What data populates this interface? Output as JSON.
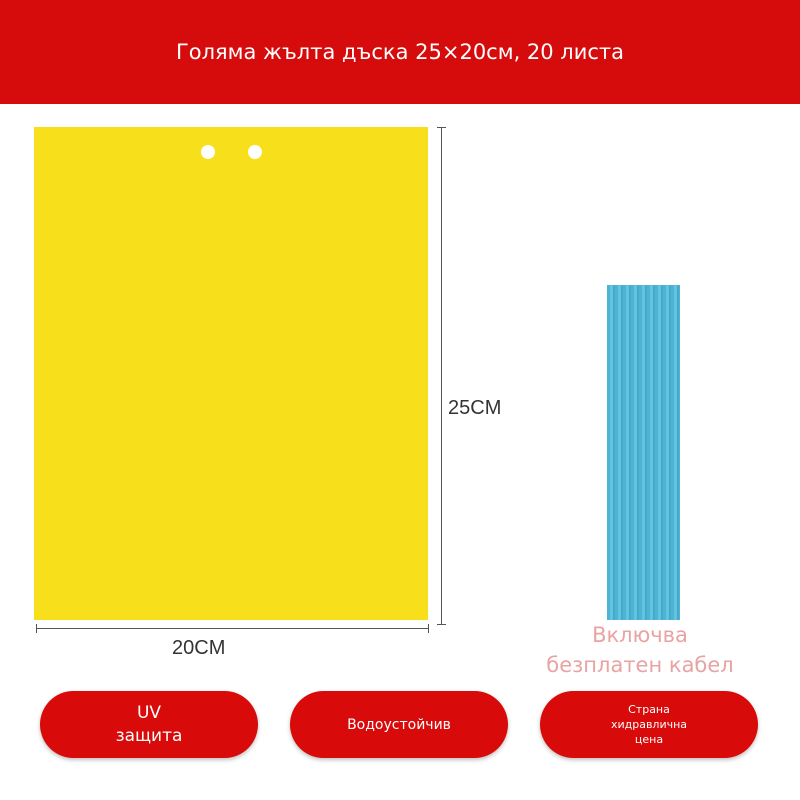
{
  "header": {
    "title": "Голяма жълта дъска 25×20см, 20 листа"
  },
  "colors": {
    "header": "#d60c0c",
    "board": "#f8df1c",
    "cable": "#4db4d4",
    "caption": "#e9a3a3",
    "pill": "#d80a0a"
  },
  "dimensions": {
    "height_label": "25CM",
    "width_label": "20CM"
  },
  "cable": {
    "line1": "Включва",
    "line2": "безплатен кабел"
  },
  "features": [
    {
      "line1": "UV",
      "line2": "защита"
    },
    {
      "line1": "Водоустойчив"
    },
    {
      "line1": "Страна",
      "line2": "хидравлична",
      "line3": "цена"
    }
  ]
}
